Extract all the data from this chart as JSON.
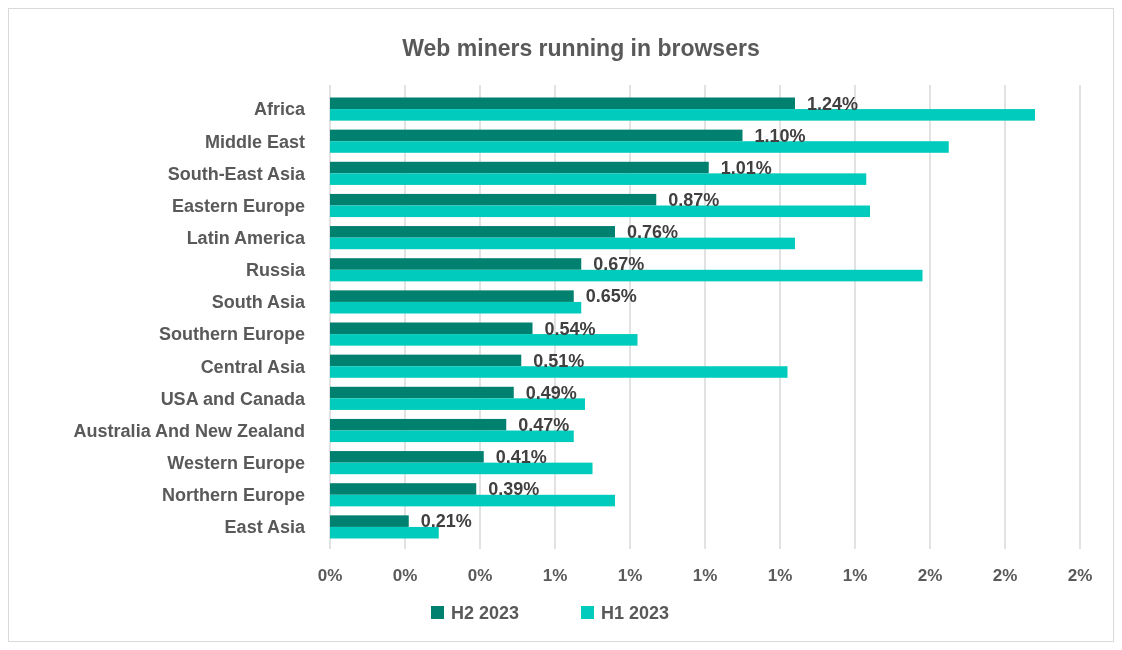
{
  "chart_data": {
    "type": "bar",
    "orientation": "horizontal",
    "title": "Web miners running in browsers",
    "categories": [
      "Africa",
      "Middle East",
      "South-East Asia",
      "Eastern Europe",
      "Latin America",
      "Russia",
      "South Asia",
      "Southern Europe",
      "Central Asia",
      "USA and Canada",
      "Australia And New Zealand",
      "Western Europe",
      "Northern Europe",
      "East Asia"
    ],
    "series": [
      {
        "name": "H2 2023",
        "color": "#00806e",
        "values": [
          1.24,
          1.1,
          1.01,
          0.87,
          0.76,
          0.67,
          0.65,
          0.54,
          0.51,
          0.49,
          0.47,
          0.41,
          0.39,
          0.21
        ],
        "value_labels": [
          "1.24%",
          "1.10%",
          "1.01%",
          "0.87%",
          "0.76%",
          "0.67%",
          "0.65%",
          "0.54%",
          "0.51%",
          "0.49%",
          "0.47%",
          "0.41%",
          "0.39%",
          "0.21%"
        ]
      },
      {
        "name": "H1 2023",
        "color": "#00cbbc",
        "values": [
          1.88,
          1.65,
          1.43,
          1.44,
          1.24,
          1.58,
          0.67,
          0.82,
          1.22,
          0.68,
          0.65,
          0.7,
          0.76,
          0.29
        ]
      }
    ],
    "xlim": [
      0,
      2
    ],
    "xticks": [
      {
        "value": 0,
        "label": "0%"
      },
      {
        "value": 0.2,
        "label": "0%"
      },
      {
        "value": 0.4,
        "label": "0%"
      },
      {
        "value": 0.6,
        "label": "1%"
      },
      {
        "value": 0.8,
        "label": "1%"
      },
      {
        "value": 1.0,
        "label": "1%"
      },
      {
        "value": 1.2,
        "label": "1%"
      },
      {
        "value": 1.4,
        "label": "1%"
      },
      {
        "value": 1.6,
        "label": "2%"
      },
      {
        "value": 1.8,
        "label": "2%"
      },
      {
        "value": 2.0,
        "label": "2%"
      }
    ],
    "grid": "x",
    "legend": "bottom"
  }
}
